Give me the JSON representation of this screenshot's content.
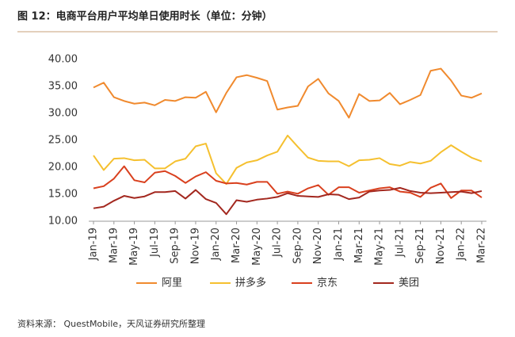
{
  "chart_data": {
    "type": "line",
    "title": "图 12：电商平台用户平均单日使用时长（单位：分钟）",
    "source": "资料来源： QuestMobile，天风证券研究所整理",
    "categories": [
      "Jan-19",
      null,
      "Mar-19",
      null,
      "May-19",
      null,
      "Jul-19",
      null,
      "Sep-19",
      null,
      "Nov-19",
      null,
      "Jan-20",
      null,
      "Mar-20",
      null,
      "May-20",
      null,
      "Jul-20",
      null,
      "Sep-20",
      null,
      "Nov-20",
      null,
      "Jan-21",
      null,
      "Mar-21",
      null,
      "May-21",
      null,
      "Jul-21",
      null,
      "Sep-21",
      null,
      "Nov-21",
      null,
      "Jan-22",
      null,
      "Mar-22"
    ],
    "series": [
      {
        "name": "阿里",
        "color": "#F08A2E",
        "values": [
          34.8,
          35.7,
          33.0,
          32.3,
          31.8,
          32.0,
          31.5,
          32.5,
          32.3,
          33.0,
          32.9,
          34.0,
          30.2,
          33.8,
          36.7,
          37.1,
          36.6,
          36.0,
          30.7,
          31.1,
          31.4,
          35.0,
          36.4,
          33.7,
          32.3,
          29.2,
          33.6,
          32.3,
          32.4,
          33.8,
          31.7,
          32.5,
          33.4,
          37.9,
          38.3,
          36.1,
          33.3,
          32.9,
          33.7
        ]
      },
      {
        "name": "拼多多",
        "color": "#F5C02F",
        "values": [
          22.2,
          19.5,
          21.6,
          21.7,
          21.3,
          21.4,
          19.8,
          19.8,
          21.1,
          21.6,
          23.9,
          24.4,
          18.9,
          16.9,
          19.9,
          20.9,
          21.3,
          22.2,
          22.9,
          25.9,
          23.8,
          21.8,
          21.2,
          21.1,
          21.1,
          20.2,
          21.3,
          21.4,
          21.7,
          20.6,
          20.3,
          21.0,
          20.7,
          21.2,
          22.8,
          24.1,
          22.9,
          21.8,
          21.1
        ]
      },
      {
        "name": "京东",
        "color": "#D9401E",
        "values": [
          16.1,
          16.5,
          17.9,
          20.2,
          17.6,
          17.2,
          19.0,
          19.3,
          18.4,
          17.1,
          18.3,
          19.1,
          17.5,
          17.0,
          17.1,
          16.8,
          17.3,
          17.3,
          15.1,
          15.5,
          15.1,
          16.1,
          16.7,
          14.9,
          16.3,
          16.3,
          15.3,
          15.7,
          16.1,
          16.3,
          15.5,
          15.3,
          14.5,
          16.2,
          17.0,
          14.3,
          15.7,
          15.7,
          14.4
        ]
      },
      {
        "name": "美团",
        "color": "#A3281F",
        "values": [
          12.4,
          12.7,
          13.8,
          14.7,
          14.3,
          14.6,
          15.4,
          15.4,
          15.6,
          14.2,
          15.8,
          14.1,
          13.4,
          11.3,
          13.9,
          13.6,
          14.0,
          14.2,
          14.5,
          15.2,
          14.7,
          14.6,
          14.5,
          15.0,
          14.9,
          14.1,
          14.4,
          15.5,
          15.7,
          15.8,
          16.2,
          15.6,
          15.3,
          15.2,
          15.3,
          15.4,
          15.5,
          15.2,
          15.6
        ]
      }
    ],
    "ylim": [
      10,
      40
    ],
    "yticks": [
      {
        "value": 10,
        "label": "10.00"
      },
      {
        "value": 15,
        "label": "15.00"
      },
      {
        "value": 20,
        "label": "20.00"
      },
      {
        "value": 25,
        "label": "25.00"
      },
      {
        "value": 30,
        "label": "30.00"
      },
      {
        "value": 35,
        "label": "35.00"
      },
      {
        "value": 40,
        "label": "40.00"
      }
    ],
    "grid": false,
    "legend": "bottom"
  }
}
